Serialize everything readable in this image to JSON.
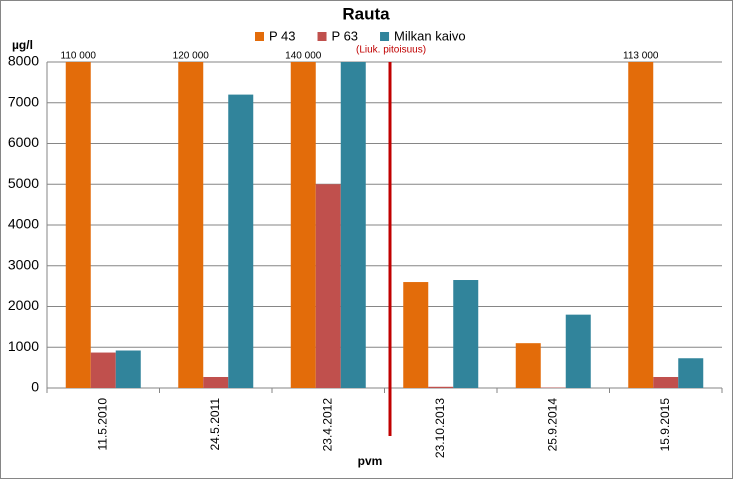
{
  "chart_data": {
    "type": "bar",
    "title": "Rauta",
    "y_label": "µg/l",
    "x_label": "pvm",
    "annotation": "(Liuk. pitoisuus)",
    "categories": [
      "11.5.2010",
      "24.5.2011",
      "23.4.2012",
      "23.10.2013",
      "25.9.2014",
      "15.9.2015"
    ],
    "series": [
      {
        "name": "P 43",
        "color": "#e36c0a",
        "values": [
          110000,
          120000,
          140000,
          2600,
          1100,
          113000
        ],
        "value_labels": [
          "110 000",
          "120 000",
          "140 000",
          null,
          null,
          "113 000"
        ]
      },
      {
        "name": "P 63",
        "color": "#c0504d",
        "values": [
          870,
          270,
          5000,
          30,
          10,
          270
        ]
      },
      {
        "name": "Milkan kaivo",
        "color": "#31849b",
        "values": [
          920,
          7200,
          8000,
          2650,
          1800,
          730
        ]
      }
    ],
    "ylim": [
      0,
      8000
    ],
    "yticks": [
      0,
      1000,
      2000,
      3000,
      4000,
      5000,
      6000,
      7000,
      8000
    ],
    "grid": true
  }
}
